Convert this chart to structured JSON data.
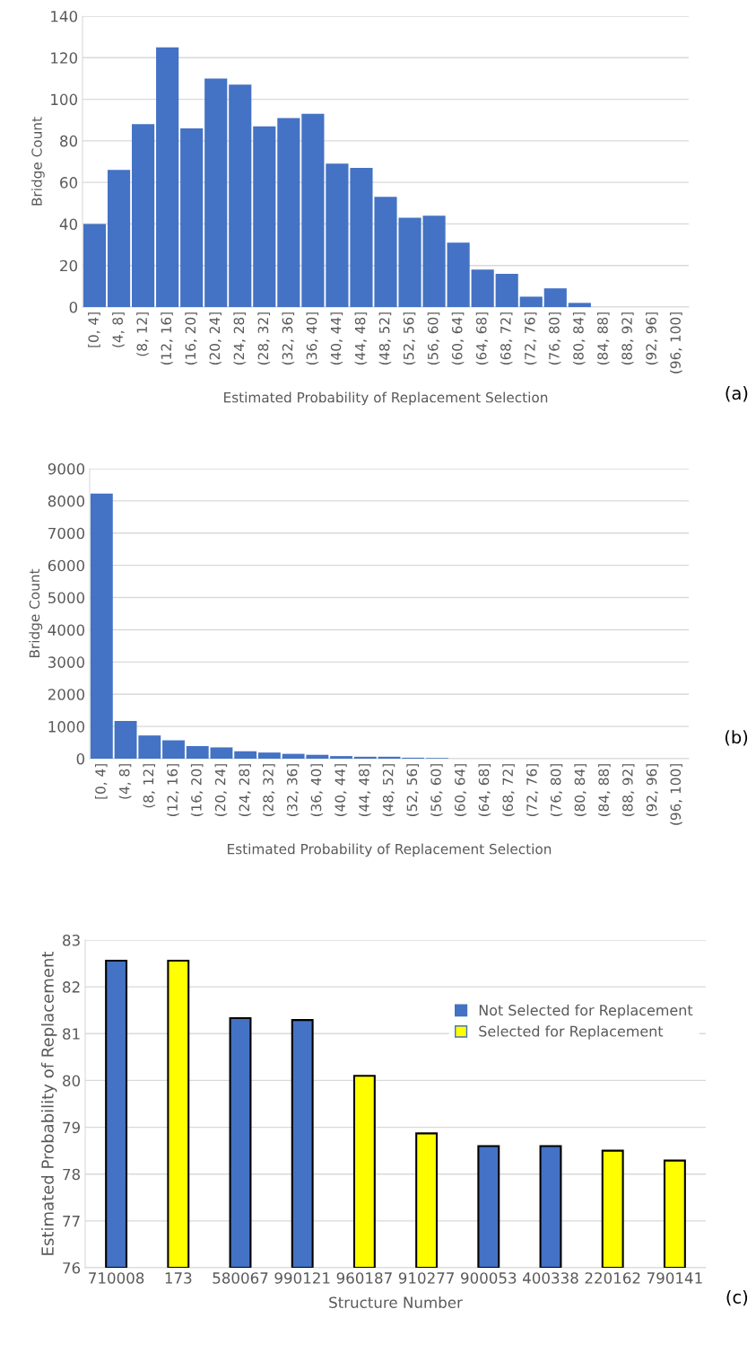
{
  "chart_data": [
    {
      "type": "bar",
      "xlabel": "Estimated Probability of Replacement Selection",
      "ylabel": "Bridge Count",
      "categories": [
        "[0, 4]",
        "(4, 8]",
        "(8, 12]",
        "(12, 16]",
        "(16, 20]",
        "(20, 24]",
        "(24, 28]",
        "(28, 32]",
        "(32, 36]",
        "(36, 40]",
        "(40, 44]",
        "(44, 48]",
        "(48, 52]",
        "(52, 56]",
        "(56, 60]",
        "(60, 64]",
        "(64, 68]",
        "(68, 72]",
        "(72, 76]",
        "(76, 80]",
        "(80, 84]",
        "(84, 88]",
        "(88, 92]",
        "(92, 96]",
        "(96, 100]"
      ],
      "series": [
        {
          "color": "#4472c4",
          "values": [
            40,
            66,
            88,
            125,
            86,
            110,
            107,
            87,
            91,
            93,
            69,
            67,
            53,
            43,
            44,
            31,
            18,
            16,
            5,
            9,
            2,
            0,
            0,
            0,
            0
          ]
        }
      ],
      "ylim": [
        0,
        140
      ],
      "yticks": [
        0,
        20,
        40,
        60,
        80,
        100,
        120,
        140
      ],
      "grid": "y",
      "annotations": [
        "(a)"
      ]
    },
    {
      "type": "bar",
      "xlabel": "Estimated Probability of Replacement Selection",
      "ylabel": "Bridge Count",
      "categories": [
        "[0, 4]",
        "(4, 8]",
        "(8, 12]",
        "(12, 16]",
        "(16, 20]",
        "(20, 24]",
        "(24, 28]",
        "(28, 32]",
        "(32, 36]",
        "(36, 40]",
        "(40, 44]",
        "(44, 48]",
        "(48, 52]",
        "(52, 56]",
        "(56, 60]",
        "(60, 64]",
        "(64, 68]",
        "(68, 72]",
        "(72, 76]",
        "(76, 80]",
        "(80, 84]",
        "(84, 88]",
        "(88, 92]",
        "(92, 96]",
        "(96, 100]"
      ],
      "series": [
        {
          "color": "#4472c4",
          "values": [
            8230,
            1170,
            720,
            570,
            390,
            350,
            230,
            190,
            150,
            120,
            80,
            60,
            60,
            30,
            20,
            0,
            0,
            0,
            0,
            0,
            0,
            0,
            0,
            0,
            0
          ]
        }
      ],
      "ylim": [
        0,
        9000
      ],
      "yticks": [
        0,
        1000,
        2000,
        3000,
        4000,
        5000,
        6000,
        7000,
        8000,
        9000
      ],
      "grid": "y",
      "annotations": [
        "(b)"
      ]
    },
    {
      "type": "bar",
      "xlabel": "Structure Number",
      "ylabel": "Estimated Probability of Replacement",
      "categories": [
        "710008",
        "173",
        "580067",
        "990121",
        "960187",
        "910277",
        "900053",
        "400338",
        "220162",
        "790141"
      ],
      "series": [
        {
          "name": "Not Selected for Replacement",
          "color": "#4472c4",
          "values": [
            82.56,
            null,
            81.33,
            81.29,
            null,
            null,
            78.6,
            78.6,
            null,
            null
          ]
        },
        {
          "name": "Selected for Replacement",
          "color": "#ffff00",
          "values": [
            null,
            82.56,
            null,
            null,
            80.1,
            78.87,
            null,
            null,
            78.5,
            78.29
          ]
        }
      ],
      "ylim": [
        76,
        83
      ],
      "yticks": [
        76,
        77,
        78,
        79,
        80,
        81,
        82,
        83
      ],
      "grid": "y",
      "legend": "right",
      "annotations": [
        "(c)"
      ]
    }
  ]
}
